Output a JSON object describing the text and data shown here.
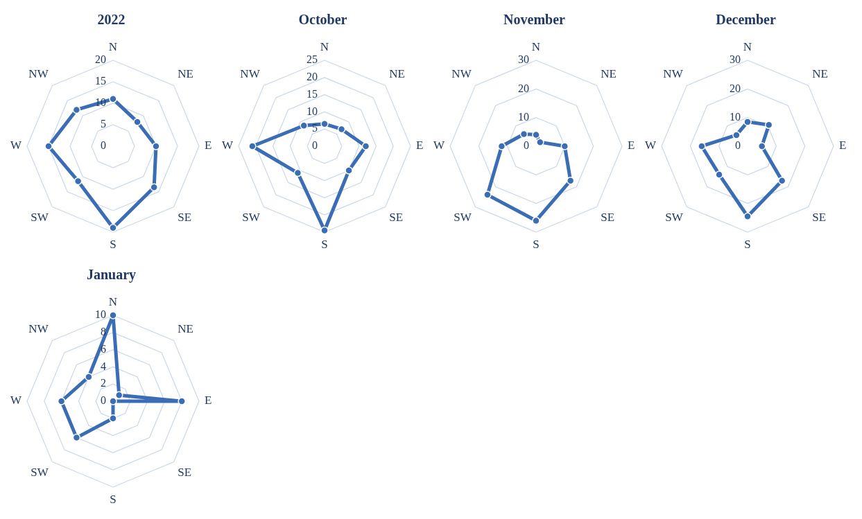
{
  "chart_data": [
    {
      "type": "radar",
      "title": "2022",
      "categories": [
        "N",
        "NE",
        "E",
        "SE",
        "S",
        "SW",
        "W",
        "NW"
      ],
      "series": [
        {
          "color": "#3a6db5",
          "values": [
            11,
            8,
            10,
            13.5,
            19,
            11.5,
            15,
            12
          ]
        }
      ],
      "ylim": [
        0,
        20
      ],
      "yticks": [
        0,
        5,
        10,
        15,
        20
      ],
      "grid": true,
      "marker": "circle"
    },
    {
      "type": "radar",
      "title": "October",
      "categories": [
        "N",
        "NE",
        "E",
        "SE",
        "S",
        "SW",
        "W",
        "NW"
      ],
      "series": [
        {
          "color": "#3a6db5",
          "values": [
            6.5,
            7,
            12,
            10,
            24.5,
            11,
            21,
            8.5
          ]
        }
      ],
      "ylim": [
        0,
        25
      ],
      "yticks": [
        0,
        5,
        10,
        15,
        20,
        25
      ],
      "grid": true,
      "marker": "circle"
    },
    {
      "type": "radar",
      "title": "November",
      "categories": [
        "N",
        "NE",
        "E",
        "SE",
        "S",
        "SW",
        "W",
        "NW"
      ],
      "series": [
        {
          "color": "#3a6db5",
          "values": [
            4,
            2,
            10,
            17,
            26,
            24,
            12,
            6
          ]
        }
      ],
      "ylim": [
        0,
        30
      ],
      "yticks": [
        0,
        10,
        20,
        30
      ],
      "grid": true,
      "marker": "circle"
    },
    {
      "type": "radar",
      "title": "December",
      "categories": [
        "N",
        "NE",
        "E",
        "SE",
        "S",
        "SW",
        "W",
        "NW"
      ],
      "series": [
        {
          "color": "#3a6db5",
          "values": [
            8.5,
            10.5,
            5,
            17,
            24.5,
            14,
            16,
            5.5
          ]
        }
      ],
      "ylim": [
        0,
        30
      ],
      "yticks": [
        0,
        10,
        20,
        30
      ],
      "grid": true,
      "marker": "circle"
    },
    {
      "type": "radar",
      "title": "January",
      "categories": [
        "N",
        "NE",
        "E",
        "SE",
        "S",
        "SW",
        "W",
        "NW"
      ],
      "series": [
        {
          "color": "#3a6db5",
          "values": [
            10,
            1,
            8,
            0,
            2,
            6,
            6,
            4
          ]
        }
      ],
      "ylim": [
        0,
        10
      ],
      "yticks": [
        0,
        2,
        4,
        6,
        8,
        10
      ],
      "grid": true,
      "marker": "circle"
    }
  ]
}
